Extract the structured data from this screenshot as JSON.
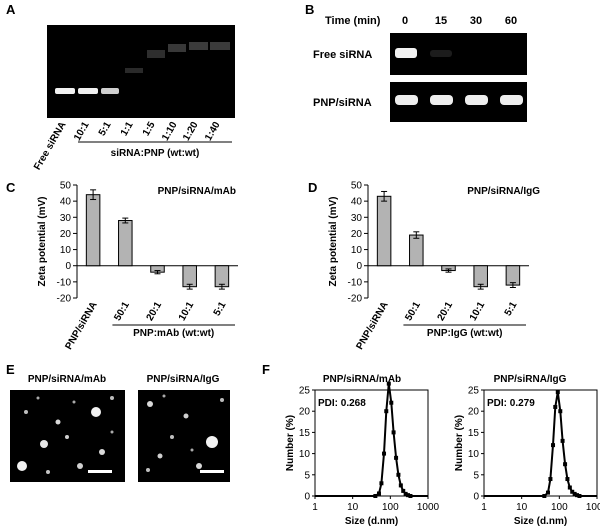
{
  "panels": {
    "A": {
      "label": "A",
      "lane_labels": [
        "Free siRNA",
        "10:1",
        "5:1",
        "1:1",
        "1:5",
        "1:10",
        "1:20",
        "1:40"
      ],
      "group_label": "siRNA:PNP (wt:wt)"
    },
    "B": {
      "label": "B",
      "time_header": "Time (min)",
      "times": [
        "0",
        "15",
        "30",
        "60"
      ],
      "rows": [
        "Free siRNA",
        "PNP/siRNA"
      ]
    },
    "C": {
      "label": "C",
      "title": "PNP/siRNA/mAb"
    },
    "D": {
      "label": "D",
      "title": "PNP/siRNA/IgG"
    },
    "E": {
      "label": "E",
      "titles": [
        "PNP/siRNA/mAb",
        "PNP/siRNA/IgG"
      ]
    },
    "F": {
      "label": "F",
      "titles": [
        "PNP/siRNA/mAb",
        "PNP/siRNA/IgG"
      ],
      "pdi": [
        "PDI: 0.268",
        "PDI: 0.279"
      ]
    }
  },
  "chart_data": [
    {
      "id": "C",
      "type": "bar",
      "title": "PNP/siRNA/mAb",
      "ylabel": "Zeta potential (mV)",
      "xlabel": "PNP:mAb (wt:wt)",
      "categories": [
        "PNP/siRNA",
        "50:1",
        "20:1",
        "10:1",
        "5:1"
      ],
      "values": [
        44,
        28,
        -4,
        -13,
        -13
      ],
      "errors": [
        3,
        1.5,
        1,
        1.5,
        1.5
      ],
      "ylim": [
        -20,
        50
      ],
      "yticks": [
        -20,
        -10,
        0,
        10,
        20,
        30,
        40,
        50
      ],
      "bar_color": "#b3b3b3"
    },
    {
      "id": "D",
      "type": "bar",
      "title": "PNP/siRNA/IgG",
      "ylabel": "Zeta potential (mV)",
      "xlabel": "PNP:IgG (wt:wt)",
      "categories": [
        "PNP/siRNA",
        "50:1",
        "20:1",
        "10:1",
        "5:1"
      ],
      "values": [
        43,
        19,
        -3,
        -13,
        -12
      ],
      "errors": [
        3,
        2,
        1,
        1.5,
        1.5
      ],
      "ylim": [
        -20,
        50
      ],
      "yticks": [
        -20,
        -10,
        0,
        10,
        20,
        30,
        40,
        50
      ],
      "bar_color": "#b3b3b3"
    },
    {
      "id": "F1",
      "type": "line",
      "title": "PNP/siRNA/mAb",
      "xlabel": "Size (d.nm)",
      "ylabel": "Number (%)",
      "x_scale": "log",
      "xlim": [
        1,
        1000
      ],
      "xticks": [
        1,
        10,
        100,
        1000
      ],
      "ylim": [
        0,
        25
      ],
      "yticks": [
        0,
        5,
        10,
        15,
        20,
        25
      ],
      "x": [
        40,
        50,
        58,
        68,
        78,
        91,
        106,
        122,
        142,
        164,
        190,
        220,
        255,
        295,
        342
      ],
      "y": [
        0,
        0.6,
        3,
        10,
        20,
        26.5,
        22,
        15,
        9,
        5,
        2.5,
        1.2,
        0.5,
        0.2,
        0
      ]
    },
    {
      "id": "F2",
      "type": "line",
      "title": "PNP/siRNA/IgG",
      "xlabel": "Size (d.nm)",
      "ylabel": "Number (%)",
      "x_scale": "log",
      "xlim": [
        1,
        1000
      ],
      "xticks": [
        1,
        10,
        100,
        1000
      ],
      "ylim": [
        0,
        25
      ],
      "yticks": [
        0,
        5,
        10,
        15,
        20,
        25
      ],
      "x": [
        40,
        50,
        58,
        68,
        78,
        91,
        106,
        122,
        142,
        164,
        190,
        220,
        255,
        295,
        342
      ],
      "y": [
        0,
        0.8,
        4,
        12,
        21,
        24.5,
        20,
        13,
        7.5,
        4,
        2,
        1,
        0.5,
        0.2,
        0
      ]
    }
  ]
}
